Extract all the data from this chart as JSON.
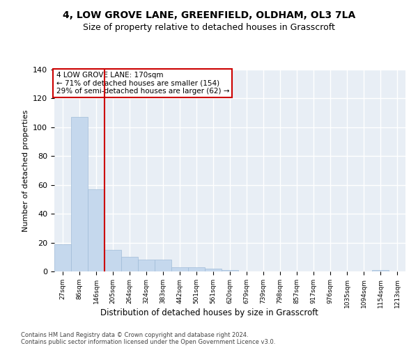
{
  "title": "4, LOW GROVE LANE, GREENFIELD, OLDHAM, OL3 7LA",
  "subtitle": "Size of property relative to detached houses in Grasscroft",
  "xlabel": "Distribution of detached houses by size in Grasscroft",
  "ylabel": "Number of detached properties",
  "categories": [
    "27sqm",
    "86sqm",
    "146sqm",
    "205sqm",
    "264sqm",
    "324sqm",
    "383sqm",
    "442sqm",
    "501sqm",
    "561sqm",
    "620sqm",
    "679sqm",
    "739sqm",
    "798sqm",
    "857sqm",
    "917sqm",
    "976sqm",
    "1035sqm",
    "1094sqm",
    "1154sqm",
    "1213sqm"
  ],
  "values": [
    19,
    107,
    57,
    15,
    10,
    8,
    8,
    3,
    3,
    2,
    1,
    0,
    0,
    0,
    0,
    0,
    0,
    0,
    0,
    1,
    0
  ],
  "bar_color": "#c5d8ed",
  "bar_edge_color": "#a0bcd8",
  "red_line_x": 2.5,
  "annotation_title": "4 LOW GROVE LANE: 170sqm",
  "annotation_line1": "← 71% of detached houses are smaller (154)",
  "annotation_line2": "29% of semi-detached houses are larger (62) →",
  "annotation_box_color": "#ffffff",
  "annotation_box_edge": "#cc0000",
  "red_line_color": "#cc0000",
  "ylim": [
    0,
    140
  ],
  "yticks": [
    0,
    20,
    40,
    60,
    80,
    100,
    120,
    140
  ],
  "background_color": "#e8eef5",
  "grid_color": "#ffffff",
  "title_fontsize": 10,
  "subtitle_fontsize": 9,
  "footer1": "Contains HM Land Registry data © Crown copyright and database right 2024.",
  "footer2": "Contains public sector information licensed under the Open Government Licence v3.0."
}
